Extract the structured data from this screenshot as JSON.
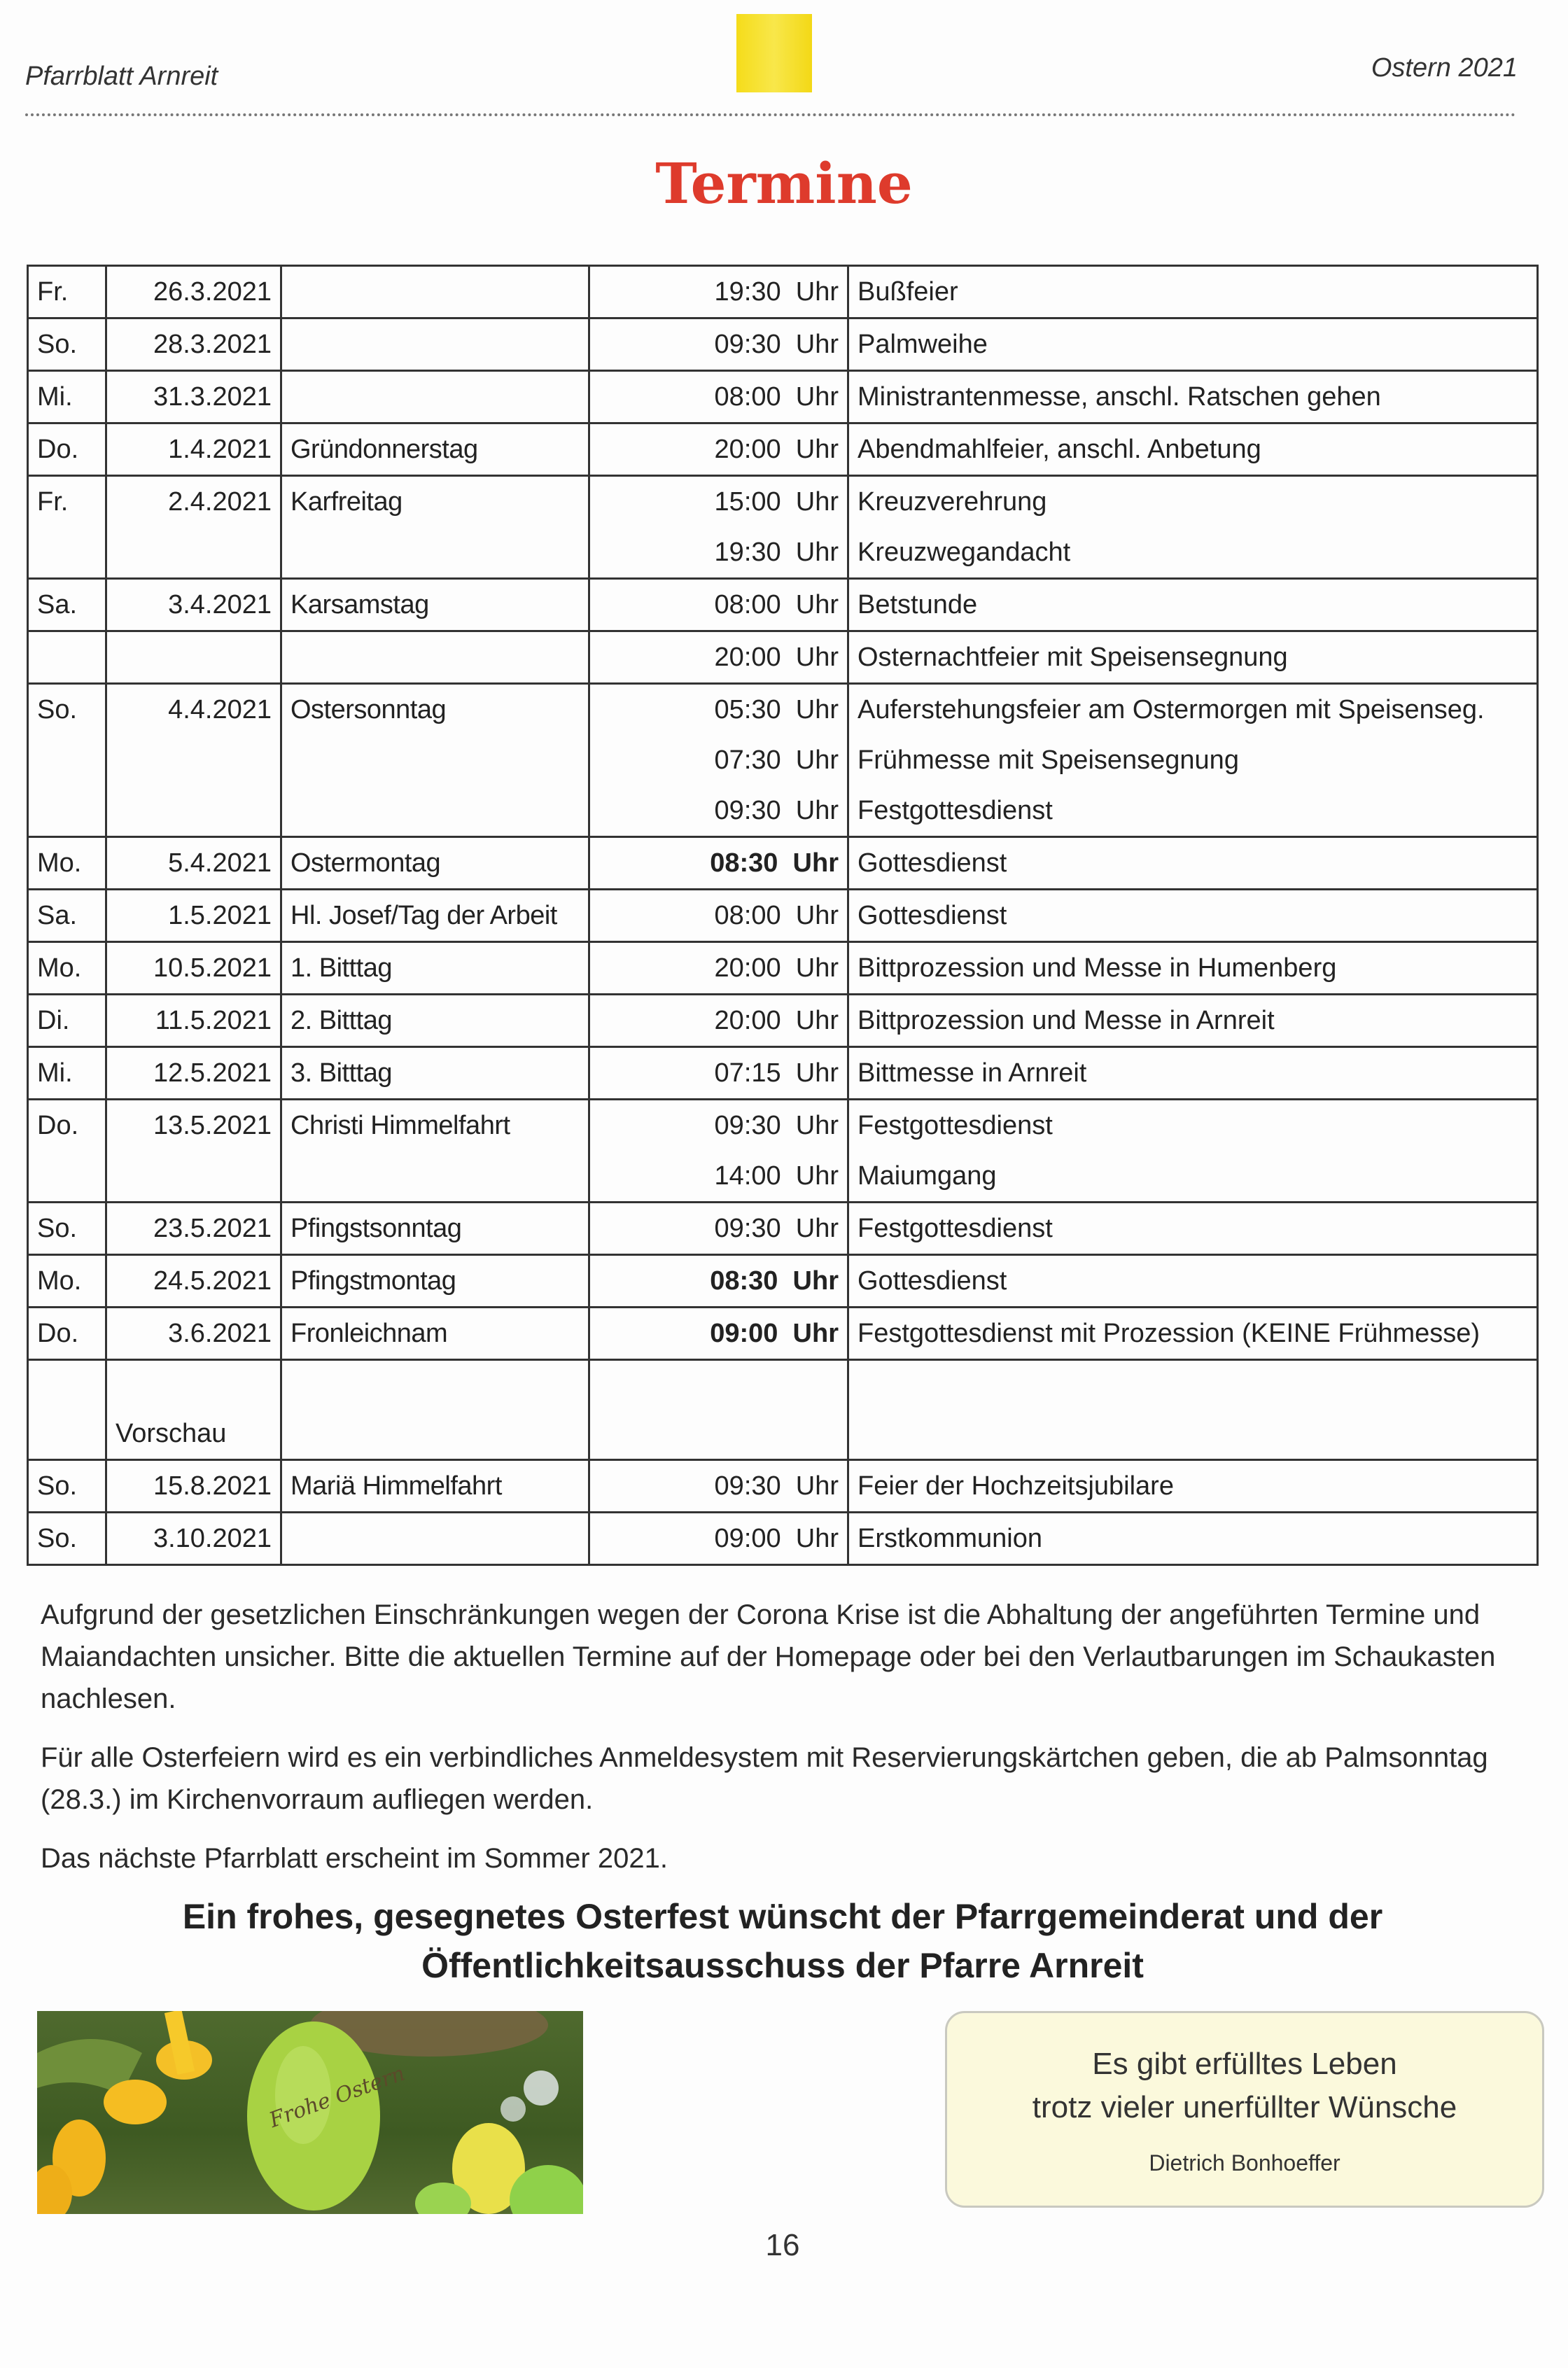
{
  "header": {
    "left": "Pfarrblatt Arnreit",
    "right": "Ostern 2021"
  },
  "title": "Termine",
  "schedule": [
    {
      "day": "Fr.",
      "date": "26.3.2021",
      "name": "",
      "times": [
        "19:30  Uhr"
      ],
      "events": [
        "Bußfeier"
      ],
      "bold": false
    },
    {
      "day": "So.",
      "date": "28.3.2021",
      "name": "",
      "times": [
        "09:30  Uhr"
      ],
      "events": [
        "Palmweihe"
      ],
      "bold": false
    },
    {
      "day": "Mi.",
      "date": "31.3.2021",
      "name": "",
      "times": [
        "08:00  Uhr"
      ],
      "events": [
        "Ministrantenmesse, anschl. Ratschen gehen"
      ],
      "bold": false
    },
    {
      "day": "Do.",
      "date": "1.4.2021",
      "name": "Gründonnerstag",
      "times": [
        "20:00  Uhr"
      ],
      "events": [
        "Abendmahlfeier, anschl. Anbetung"
      ],
      "bold": false
    },
    {
      "day": "Fr.",
      "date": "2.4.2021",
      "name": "Karfreitag",
      "times": [
        "15:00  Uhr",
        "19:30  Uhr"
      ],
      "events": [
        "Kreuzverehrung",
        "Kreuzwegandacht"
      ],
      "bold": false
    },
    {
      "day": "Sa.",
      "date": "3.4.2021",
      "name": "Karsamstag",
      "times": [
        "08:00  Uhr"
      ],
      "events": [
        "Betstunde"
      ],
      "bold": false
    },
    {
      "day": "",
      "date": "",
      "name": "",
      "times": [
        "20:00  Uhr"
      ],
      "events": [
        "Osternachtfeier mit Speisensegnung"
      ],
      "bold": false
    },
    {
      "day": "So.",
      "date": "4.4.2021",
      "name": "Ostersonntag",
      "times": [
        "05:30  Uhr",
        "07:30  Uhr",
        "09:30  Uhr"
      ],
      "events": [
        "Auferstehungsfeier am Ostermorgen mit Speisenseg.",
        "Frühmesse mit Speisensegnung",
        "Festgottesdienst"
      ],
      "bold": false
    },
    {
      "day": "Mo.",
      "date": "5.4.2021",
      "name": "Ostermontag",
      "times": [
        "08:30  Uhr"
      ],
      "events": [
        "Gottesdienst"
      ],
      "bold": true
    },
    {
      "day": "Sa.",
      "date": "1.5.2021",
      "name": "Hl. Josef/Tag der Arbeit",
      "times": [
        "08:00  Uhr"
      ],
      "events": [
        "Gottesdienst"
      ],
      "bold": false
    },
    {
      "day": "Mo.",
      "date": "10.5.2021",
      "name": "1. Bitttag",
      "times": [
        "20:00  Uhr"
      ],
      "events": [
        "Bittprozession und Messe in Humenberg"
      ],
      "bold": false
    },
    {
      "day": "Di.",
      "date": "11.5.2021",
      "name": "2. Bitttag",
      "times": [
        "20:00  Uhr"
      ],
      "events": [
        "Bittprozession und Messe in Arnreit"
      ],
      "bold": false
    },
    {
      "day": "Mi.",
      "date": "12.5.2021",
      "name": "3. Bitttag",
      "times": [
        "07:15  Uhr"
      ],
      "events": [
        "Bittmesse in Arnreit"
      ],
      "bold": false
    },
    {
      "day": "Do.",
      "date": "13.5.2021",
      "name": "Christi Himmelfahrt",
      "times": [
        "09:30  Uhr",
        "14:00  Uhr"
      ],
      "events": [
        "Festgottesdienst",
        "Maiumgang"
      ],
      "bold": false
    },
    {
      "day": "So.",
      "date": "23.5.2021",
      "name": "Pfingstsonntag",
      "times": [
        "09:30  Uhr"
      ],
      "events": [
        "Festgottesdienst"
      ],
      "bold": false
    },
    {
      "day": "Mo.",
      "date": "24.5.2021",
      "name": "Pfingstmontag",
      "times": [
        "08:30  Uhr"
      ],
      "events": [
        "Gottesdienst"
      ],
      "bold": true
    },
    {
      "day": "Do.",
      "date": "3.6.2021",
      "name": "Fronleichnam",
      "times": [
        "09:00  Uhr"
      ],
      "events": [
        "Festgottesdienst mit Prozession (KEINE Frühmesse)"
      ],
      "bold": true
    }
  ],
  "preview_label": "Vorschau",
  "preview": [
    {
      "day": "So.",
      "date": "15.8.2021",
      "name": "Mariä Himmelfahrt",
      "times": [
        "09:30  Uhr"
      ],
      "events": [
        "Feier der Hochzeitsjubilare"
      ],
      "bold": false
    },
    {
      "day": "So.",
      "date": "3.10.2021",
      "name": "",
      "times": [
        "09:00  Uhr"
      ],
      "events": [
        "Erstkommunion"
      ],
      "bold": false
    }
  ],
  "notes": {
    "p1": "Aufgrund der gesetzlichen Einschränkungen wegen der Corona Krise ist die Abhaltung der angeführten Termine und Maiandachten unsicher. Bitte die aktuellen Termine auf der Homepage oder bei den Verlautbarungen im Schaukasten nachlesen.",
    "p2": "Für alle Osterfeiern wird es ein verbindliches Anmeldesystem mit Reservierungskärtchen geben, die ab Palmsonntag (28.3.) im Kirchenvorraum aufliegen werden.",
    "p3": "Das nächste Pfarrblatt erscheint im Sommer 2021."
  },
  "greeting": {
    "line1": "Ein frohes, gesegnetes Osterfest wünscht der Pfarrgemeinderat und der",
    "line2": "Öffentlichkeitsausschuss der Pfarre Arnreit"
  },
  "photo": {
    "egg_text": "Frohe Ostern"
  },
  "quote": {
    "line1": "Es gibt erfülltes Leben",
    "line2": "trotz vieler unerfüllter Wünsche",
    "author": "Dietrich Bonhoeffer"
  },
  "page_number": "16"
}
